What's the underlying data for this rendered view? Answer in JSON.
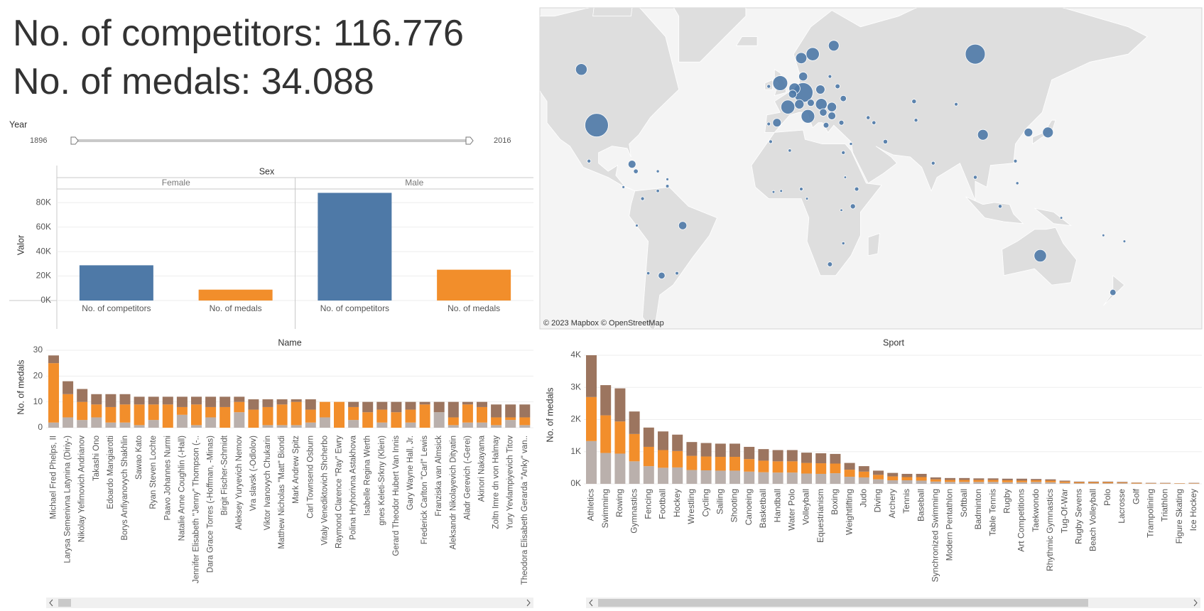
{
  "kpis": [
    "No. of competitors: 116.776",
    "No. of medals: 34.088"
  ],
  "filter": {
    "label": "Year",
    "range": [
      1896,
      2016
    ]
  },
  "chart_data": [
    {
      "type": "facet-bar",
      "facet_title": "Sex",
      "ylabel": "Valor",
      "categories": [
        "No. of competitors",
        "No. of medals"
      ],
      "colors": [
        "#4e79a7",
        "#f28e2b"
      ],
      "facets": [
        {
          "name": "Female",
          "values": [
            28800,
            8900
          ]
        },
        {
          "name": "Male",
          "values": [
            88000,
            25200
          ]
        }
      ],
      "ylim": [
        0,
        90000
      ],
      "yticks": [
        {
          "value": 0,
          "label": "0K"
        },
        {
          "value": 20000,
          "label": "20K"
        },
        {
          "value": 40000,
          "label": "40K"
        },
        {
          "value": 60000,
          "label": "60K"
        },
        {
          "value": 80000,
          "label": "80K"
        }
      ],
      "grid": true
    },
    {
      "type": "map",
      "attribution": "© 2023 Mapbox © OpenStreetMap",
      "color": "#4e79a7",
      "lon": [
        -98,
        100,
        10,
        -2,
        2,
        12.5,
        15,
        134,
        -106,
        19.5,
        5.5,
        9,
        104,
        138,
        26,
        25,
        19,
        -3.7,
        8,
        10,
        4.5,
        25,
        -79.5,
        -53,
        127.8,
        14,
        20.5,
        172,
        -64,
        31,
        -102,
        -74,
        -66,
        -77,
        -61,
        -71,
        22,
        30,
        38,
        36,
        -7,
        3,
        53,
        69,
        78,
        100,
        121,
        113,
        -1.5,
        24,
        31,
        47,
        -77.5,
        -61,
        -66,
        31,
        30,
        32,
        122,
        68,
        90,
        44,
        28,
        -8,
        -8,
        24,
        35,
        145,
        178,
        167,
        -56,
        -84,
        -5.5,
        9,
        12
      ],
      "lat": [
        39,
        62,
        51,
        54,
        46,
        42.5,
        62,
        -25,
        58,
        47,
        52.3,
        61,
        35,
        36,
        64,
        46,
        52,
        40,
        47,
        56,
        50.5,
        42.7,
        21.5,
        -10,
        36,
        47.5,
        44,
        -41,
        -34,
        49,
        23,
        4,
        8,
        -10,
        14,
        -33,
        39,
        40,
        9,
        0,
        32,
        28,
        32,
        41,
        22,
        15,
        23,
        0,
        8,
        -29,
        -19,
        40,
        18,
        10.5,
        18,
        27,
        -2,
        15,
        12,
        48,
        47,
        42,
        53,
        53,
        39.5,
        56,
        31,
        -6,
        -18,
        -15,
        -33,
        10,
        7.5,
        9,
        4
      ],
      "size": [
        5600,
        3900,
        3750,
        2000,
        1700,
        1600,
        1500,
        1300,
        1100,
        1100,
        1000,
        1000,
        900,
        900,
        900,
        650,
        600,
        500,
        650,
        550,
        450,
        400,
        400,
        450,
        500,
        300,
        350,
        200,
        270,
        200,
        30,
        30,
        15,
        5,
        5,
        15,
        150,
        100,
        55,
        110,
        25,
        15,
        70,
        30,
        30,
        35,
        25,
        35,
        5,
        90,
        10,
        40,
        80,
        20,
        10,
        30,
        3,
        3,
        10,
        70,
        25,
        35,
        90,
        30,
        25,
        25,
        10,
        3,
        5,
        3,
        20,
        5,
        5,
        25,
        3
      ]
    },
    {
      "type": "stacked-bar",
      "title": "Name",
      "ylabel": "No. of medals",
      "categories": [
        "Michael Fred Phelps, II",
        "Larysa Semenivna Latynina (Diriy-)",
        "Nikolay Yefimovich Andrianov",
        "Takashi Ono",
        "Edoardo Mangiarotti",
        "Borys Anfiyanovych Shakhlin",
        "Sawao Kato",
        "Ryan Steven Lochte",
        "Paavo Johannes Nurmi",
        "Natalie Anne Coughlin (-Hall)",
        "Jennifer Elisabeth \"Jenny\" Thompson (-..",
        "Dara Grace Torres (-Hoffman, -Minas)",
        "Birgit Fischer-Schmidt",
        "Aleksey Yuryevich Nemov",
        "Vra slavsk (-Odlolov)",
        "Viktor Ivanovych Chukarin",
        "Matthew Nicholas \"Matt\" Biondi",
        "Mark Andrew Spitz",
        "Carl Townsend Osburn",
        "Vitaly Venediktovich Shcherbo",
        "Raymond Clarence \"Ray\" Ewry",
        "Polina Hryhorivna Astakhova",
        "Isabelle Regina Werth",
        "gnes Keleti-Srkny (Klein)",
        "Gerard Theodor Hubert Van Innis",
        "Gary Wayne Hall, Jr.",
        "Frederick Carlton \"Carl\" Lewis",
        "Franziska van Almsick",
        "Aleksandr Nikolayevich Dityatin",
        "Aladr Gerevich (-Gerei)",
        "Akinori Nakayama",
        "Zoltn Imre dn von Halmay",
        "Yury Yevlampiyevich Titov",
        "Theodora Elisabeth Gerarda \"Anky\" van.."
      ],
      "series": [
        {
          "color": "#bab0ac",
          "values": [
            2,
            4,
            3,
            4,
            2,
            2,
            1,
            3,
            0,
            5,
            1,
            4,
            0,
            6,
            0,
            1,
            1,
            1,
            2,
            4,
            0,
            3,
            0,
            2,
            0,
            2,
            0,
            6,
            1,
            2,
            2,
            1,
            3,
            1
          ]
        },
        {
          "color": "#f28e2b",
          "values": [
            23,
            9,
            7,
            5,
            6,
            7,
            8,
            6,
            9,
            3,
            8,
            4,
            8,
            4,
            7,
            7,
            8,
            9,
            5,
            6,
            10,
            5,
            6,
            5,
            6,
            5,
            9,
            0,
            3,
            7,
            6,
            3,
            1,
            3
          ]
        },
        {
          "color": "#9c755f",
          "values": [
            3,
            5,
            5,
            4,
            5,
            4,
            3,
            3,
            3,
            4,
            3,
            4,
            4,
            2,
            4,
            3,
            2,
            1,
            4,
            0,
            0,
            2,
            4,
            3,
            4,
            3,
            1,
            4,
            6,
            1,
            2,
            5,
            5,
            5
          ]
        }
      ],
      "ylim": [
        0,
        30
      ],
      "yticks": [
        0,
        10,
        20,
        30
      ],
      "grid": true
    },
    {
      "type": "stacked-bar",
      "title": "Sport",
      "ylabel": "No. of medals",
      "categories": [
        "Athletics",
        "Swimming",
        "Rowing",
        "Gymnastics",
        "Fencing",
        "Football",
        "Hockey",
        "Wrestling",
        "Cycling",
        "Sailing",
        "Shooting",
        "Canoeing",
        "Basketball",
        "Handball",
        "Water Polo",
        "Volleyball",
        "Equestrianism",
        "Boxing",
        "Weightlifting",
        "Judo",
        "Diving",
        "Archery",
        "Tennis",
        "Baseball",
        "Synchronized Swimming",
        "Modern Pentathlon",
        "Softball",
        "Badminton",
        "Table Tennis",
        "Rugby",
        "Art Competitions",
        "Taekwondo",
        "Rhythmic Gymnastics",
        "Tug-Of-War",
        "Rugby Sevens",
        "Beach Volleyball",
        "Polo",
        "Lacrosse",
        "Golf",
        "Trampolining",
        "Triathlon",
        "Figure Skating",
        "Ice Hockey"
      ],
      "series": [
        {
          "color": "#bab0ac",
          "values": [
            1330,
            960,
            940,
            700,
            550,
            500,
            510,
            430,
            420,
            410,
            410,
            380,
            360,
            350,
            350,
            320,
            310,
            330,
            220,
            200,
            140,
            110,
            110,
            100,
            70,
            60,
            60,
            60,
            60,
            50,
            50,
            60,
            50,
            30,
            20,
            20,
            20,
            20,
            10,
            10,
            10,
            5,
            10
          ]
        },
        {
          "color": "#f28e2b",
          "values": [
            1370,
            1170,
            1000,
            850,
            600,
            550,
            510,
            440,
            430,
            430,
            430,
            390,
            360,
            350,
            350,
            330,
            330,
            300,
            220,
            180,
            140,
            120,
            100,
            110,
            70,
            60,
            60,
            60,
            60,
            60,
            50,
            50,
            50,
            40,
            30,
            30,
            30,
            20,
            20,
            10,
            10,
            10,
            10
          ]
        },
        {
          "color": "#9c755f",
          "values": [
            1300,
            940,
            1030,
            700,
            600,
            580,
            510,
            430,
            420,
            410,
            410,
            380,
            360,
            350,
            350,
            320,
            310,
            300,
            210,
            170,
            130,
            110,
            100,
            100,
            60,
            60,
            60,
            50,
            50,
            50,
            60,
            40,
            40,
            30,
            20,
            20,
            20,
            20,
            10,
            10,
            10,
            5,
            10
          ]
        }
      ],
      "ylim": [
        0,
        4000
      ],
      "yticks": [
        {
          "value": 0,
          "label": "0K"
        },
        {
          "value": 1000,
          "label": "1K"
        },
        {
          "value": 2000,
          "label": "2K"
        },
        {
          "value": 3000,
          "label": "3K"
        },
        {
          "value": 4000,
          "label": "4K"
        }
      ],
      "grid": true
    }
  ]
}
